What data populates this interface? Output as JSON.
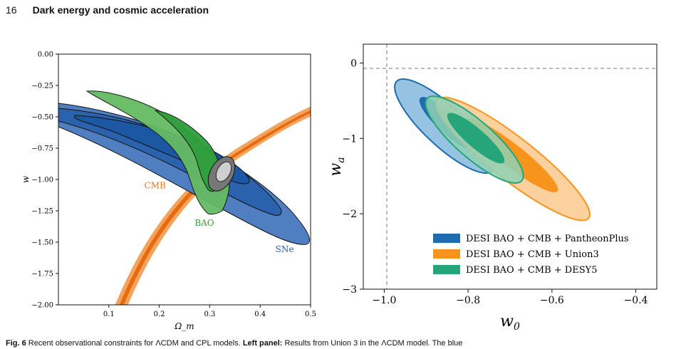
{
  "header": {
    "page_number": "16",
    "running_title": "Dark energy and cosmic acceleration"
  },
  "left_panel": {
    "chart_data": {
      "type": "contour",
      "xlabel": "Ω_m",
      "ylabel": "w",
      "xlim": [
        0.0,
        0.5
      ],
      "ylim": [
        -2.0,
        0.0
      ],
      "x_ticks": [
        "0.1",
        "0.2",
        "0.3",
        "0.4",
        "0.5"
      ],
      "x_tick_values": [
        0.1,
        0.2,
        0.3,
        0.4,
        0.5
      ],
      "y_ticks": [
        "0.00",
        "−0.25",
        "−0.50",
        "−0.75",
        "−1.00",
        "−1.25",
        "−1.50",
        "−1.75",
        "−2.00"
      ],
      "y_tick_values": [
        0.0,
        -0.25,
        -0.5,
        -0.75,
        -1.0,
        -1.25,
        -1.5,
        -1.75,
        -2.0
      ],
      "annotations": [
        {
          "text": "CMB",
          "x": 0.19,
          "y": -1.07,
          "color": "#e8731a"
        },
        {
          "text": "BAO",
          "x": 0.29,
          "y": -1.37,
          "color": "#3a9a3a"
        },
        {
          "text": "SNe",
          "x": 0.45,
          "y": -1.58,
          "color": "#2a5fa8"
        }
      ],
      "contours": [
        {
          "name": "SNe",
          "colors": [
            "#5b86c4",
            "#1f5aa6"
          ],
          "outer": [
            [
              0.0,
              -0.4
            ],
            [
              0.1,
              -0.46
            ],
            [
              0.2,
              -0.55
            ],
            [
              0.3,
              -0.68
            ],
            [
              0.38,
              -0.88
            ],
            [
              0.44,
              -1.15
            ],
            [
              0.48,
              -1.4
            ],
            [
              0.5,
              -1.52
            ],
            [
              0.47,
              -1.55
            ],
            [
              0.4,
              -1.45
            ],
            [
              0.3,
              -1.25
            ],
            [
              0.2,
              -0.95
            ],
            [
              0.1,
              -0.72
            ],
            [
              0.0,
              -0.56
            ]
          ]
        },
        {
          "name": "BAO",
          "colors": [
            "#6fbf6a",
            "#2f9e3c"
          ],
          "outer": [
            [
              0.05,
              -0.29
            ],
            [
              0.12,
              -0.31
            ],
            [
              0.22,
              -0.4
            ],
            [
              0.28,
              -0.55
            ],
            [
              0.31,
              -0.72
            ],
            [
              0.32,
              -0.9
            ],
            [
              0.32,
              -1.1
            ],
            [
              0.3,
              -1.26
            ],
            [
              0.27,
              -1.22
            ],
            [
              0.25,
              -1.05
            ],
            [
              0.24,
              -0.85
            ],
            [
              0.2,
              -0.6
            ],
            [
              0.12,
              -0.4
            ]
          ]
        },
        {
          "name": "CMB",
          "colors": [
            "#f3a35c",
            "#e66a10"
          ],
          "band": [
            [
              0.12,
              -2.0
            ],
            [
              0.2,
              -1.4
            ],
            [
              0.28,
              -1.08
            ],
            [
              0.36,
              -0.86
            ],
            [
              0.44,
              -0.65
            ],
            [
              0.5,
              -0.45
            ]
          ]
        }
      ]
    }
  },
  "right_panel": {
    "chart_data": {
      "type": "contour",
      "xlabel": "w_0",
      "ylabel": "w_a",
      "xlim": [
        -1.05,
        -0.35
      ],
      "ylim": [
        -3.0,
        0.25
      ],
      "x_ticks": [
        "−1.0",
        "−0.8",
        "−0.6",
        "−0.4"
      ],
      "x_tick_values": [
        -1.0,
        -0.8,
        -0.6,
        -0.4
      ],
      "y_ticks": [
        "0",
        "−1",
        "−2",
        "−3"
      ],
      "y_tick_values": [
        0,
        -1,
        -2,
        -3
      ],
      "reference_lines": {
        "x": -1.0,
        "y": 0
      },
      "legend_position": "lower-right",
      "series": [
        {
          "name": "DESI BAO + CMB + PantheonPlus",
          "color": "#1f6bb0",
          "light": "#7eb6dc",
          "center": [
            -0.83,
            -0.75
          ],
          "semi_major": 0.92,
          "semi_minor": 0.065
        },
        {
          "name": "DESI BAO + CMB + Union3",
          "color": "#f7941d",
          "light": "#fbc98c",
          "center": [
            -0.66,
            -1.28
          ],
          "semi_major": 1.35,
          "semi_minor": 0.085
        },
        {
          "name": "DESI BAO + CMB + DESY5",
          "color": "#27a57a",
          "light": "#8fd1b4",
          "center": [
            -0.76,
            -0.98
          ],
          "semi_major": 0.85,
          "semi_minor": 0.06
        }
      ]
    }
  },
  "caption": {
    "prefix": "Fig. 6",
    "text1": " Recent observational constraints for ",
    "model1": "ΛCDM and CPL models. ",
    "left_label": "Left panel:",
    "text2": " Results from Union 3 in the ",
    "model2": "ΛCDM model. The blue"
  }
}
